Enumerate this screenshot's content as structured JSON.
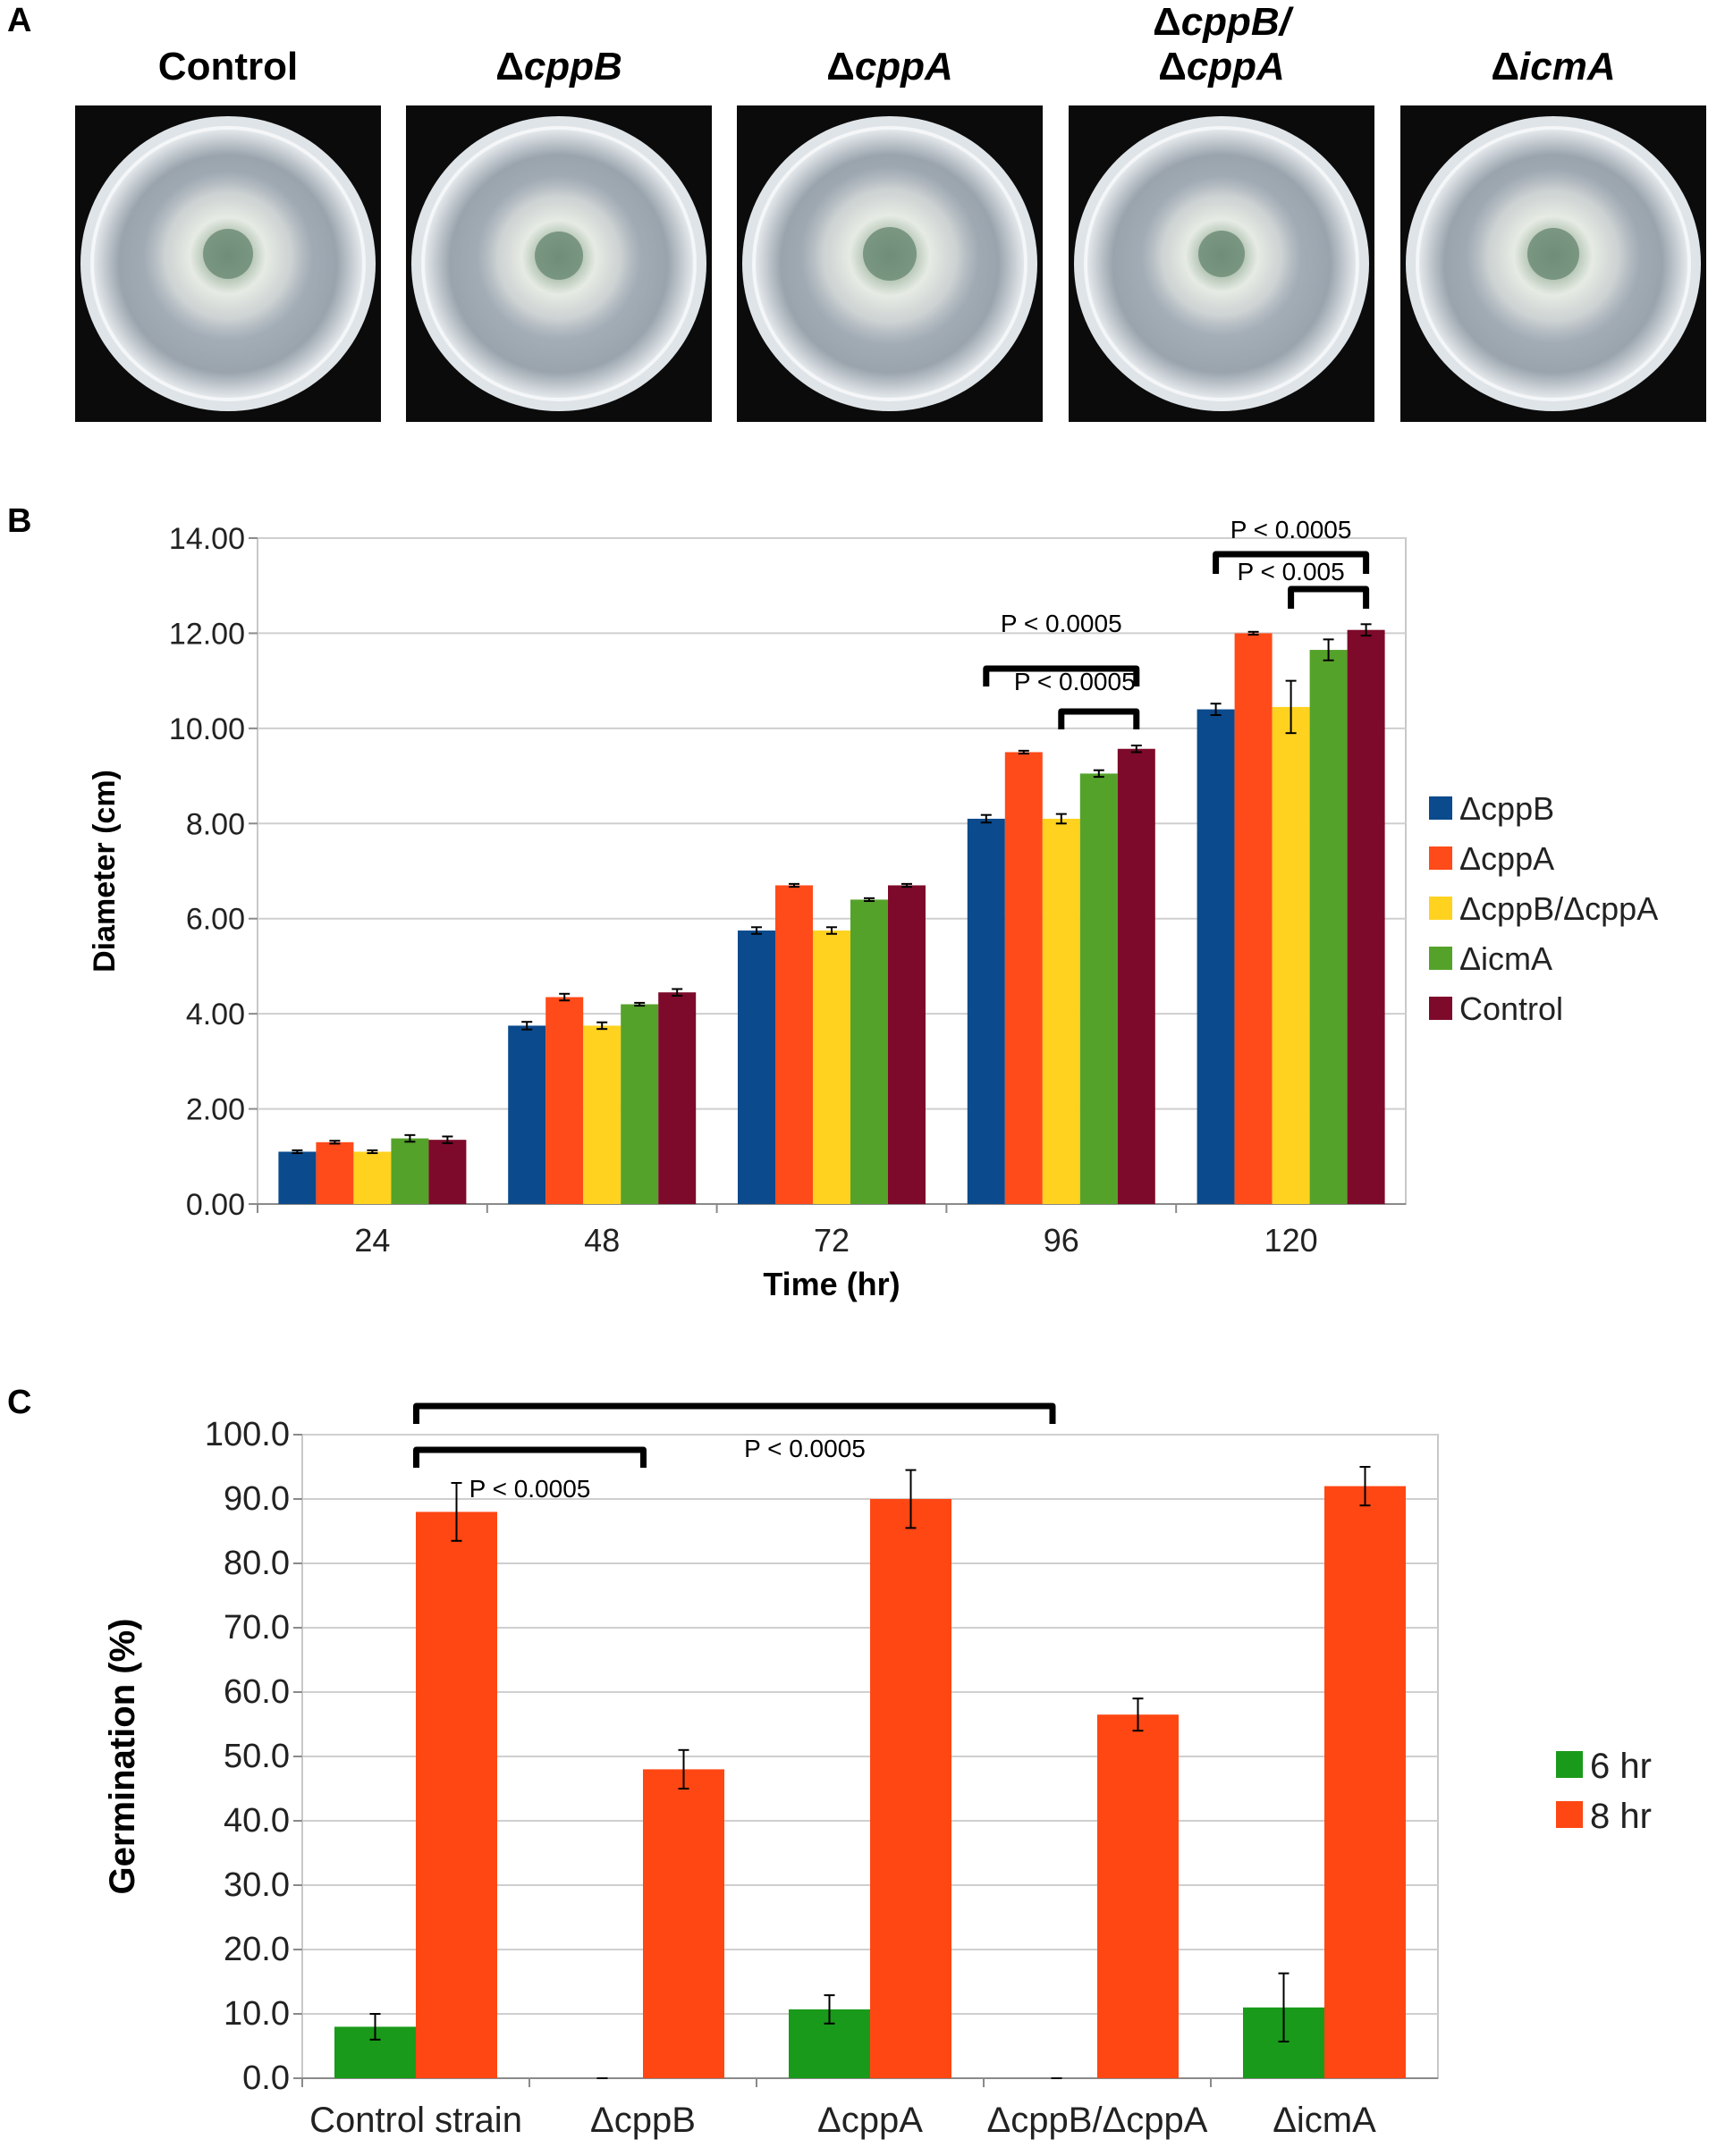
{
  "panels": {
    "a_label": "A",
    "b_label": "B",
    "c_label": "C"
  },
  "panel_a": {
    "plates": [
      {
        "delta": "",
        "name": "Control"
      },
      {
        "delta": "Δ",
        "name": "cppB"
      },
      {
        "delta": "Δ",
        "name": "cppA"
      },
      {
        "delta": "Δ",
        "name": "cppB/",
        "line2_delta": "Δ",
        "line2_name": "cppA"
      },
      {
        "delta": "Δ",
        "name": "icmA"
      }
    ]
  },
  "chart_data": [
    {
      "type": "bar",
      "panel": "B",
      "categories": [
        "24",
        "48",
        "72",
        "96",
        "120"
      ],
      "xlabel": "Time (hr)",
      "ylabel": "Diameter (cm)",
      "ylim": [
        0,
        14
      ],
      "yticks": [
        "0.00",
        "2.00",
        "4.00",
        "6.00",
        "8.00",
        "10.00",
        "12.00",
        "14.00"
      ],
      "grid": true,
      "legend_position": "right",
      "series": [
        {
          "name": "ΔcppB",
          "color": "#0b4a8c",
          "values": [
            1.1,
            3.75,
            5.75,
            8.1,
            10.4
          ],
          "errors": [
            0.03,
            0.08,
            0.07,
            0.08,
            0.12
          ]
        },
        {
          "name": "ΔcppA",
          "color": "#ff4a1a",
          "values": [
            1.3,
            4.35,
            6.7,
            9.5,
            12.0
          ],
          "errors": [
            0.03,
            0.07,
            0.03,
            0.03,
            0.03
          ]
        },
        {
          "name": "ΔcppB/ΔcppA",
          "color": "#ffd21f",
          "values": [
            1.1,
            3.75,
            5.75,
            8.1,
            10.45
          ],
          "errors": [
            0.03,
            0.07,
            0.07,
            0.1,
            0.55
          ]
        },
        {
          "name": "ΔicmA",
          "color": "#55a22a",
          "values": [
            1.38,
            4.2,
            6.4,
            9.05,
            11.65
          ],
          "errors": [
            0.07,
            0.03,
            0.03,
            0.07,
            0.22
          ]
        },
        {
          "name": "Control",
          "color": "#7d0a2a",
          "values": [
            1.35,
            4.45,
            6.7,
            9.57,
            12.07
          ],
          "errors": [
            0.07,
            0.07,
            0.03,
            0.07,
            0.12
          ]
        }
      ],
      "annotations": [
        {
          "text": "P < 0.0005",
          "category": "96",
          "from_series": 0,
          "to_series": 4
        },
        {
          "text": "P < 0.0005",
          "category": "96",
          "from_series": 2,
          "to_series": 4
        },
        {
          "text": "P < 0.0005",
          "category": "120",
          "from_series": 0,
          "to_series": 4
        },
        {
          "text": "P < 0.005",
          "category": "120",
          "from_series": 2,
          "to_series": 4
        }
      ]
    },
    {
      "type": "bar",
      "panel": "C",
      "categories": [
        "Control strain",
        "ΔcppB",
        "ΔcppA",
        "ΔcppB/ΔcppA",
        "ΔicmA"
      ],
      "xlabel": "",
      "ylabel": "Germination (%)",
      "ylim": [
        0,
        100
      ],
      "yticks": [
        "0.0",
        "10.0",
        "20.0",
        "30.0",
        "40.0",
        "50.0",
        "60.0",
        "70.0",
        "80.0",
        "90.0",
        "100.0"
      ],
      "grid": true,
      "legend_position": "right",
      "series": [
        {
          "name": "6 hr",
          "color": "#1a9a1a",
          "values": [
            8.0,
            0.0,
            10.7,
            0.0,
            11.0
          ],
          "errors": [
            2.0,
            0.0,
            2.2,
            0.0,
            5.3
          ]
        },
        {
          "name": "8 hr",
          "color": "#ff4713",
          "values": [
            88.0,
            48.0,
            90.0,
            56.5,
            92.0
          ],
          "errors": [
            4.5,
            3.0,
            4.5,
            2.5,
            3.0
          ]
        }
      ],
      "annotations": [
        {
          "text": "P < 0.0005",
          "from_category": "Control strain",
          "to_category": "ΔcppB"
        },
        {
          "text": "P < 0.0005",
          "from_category": "Control strain",
          "to_category": "ΔcppB/ΔcppA"
        }
      ]
    }
  ]
}
